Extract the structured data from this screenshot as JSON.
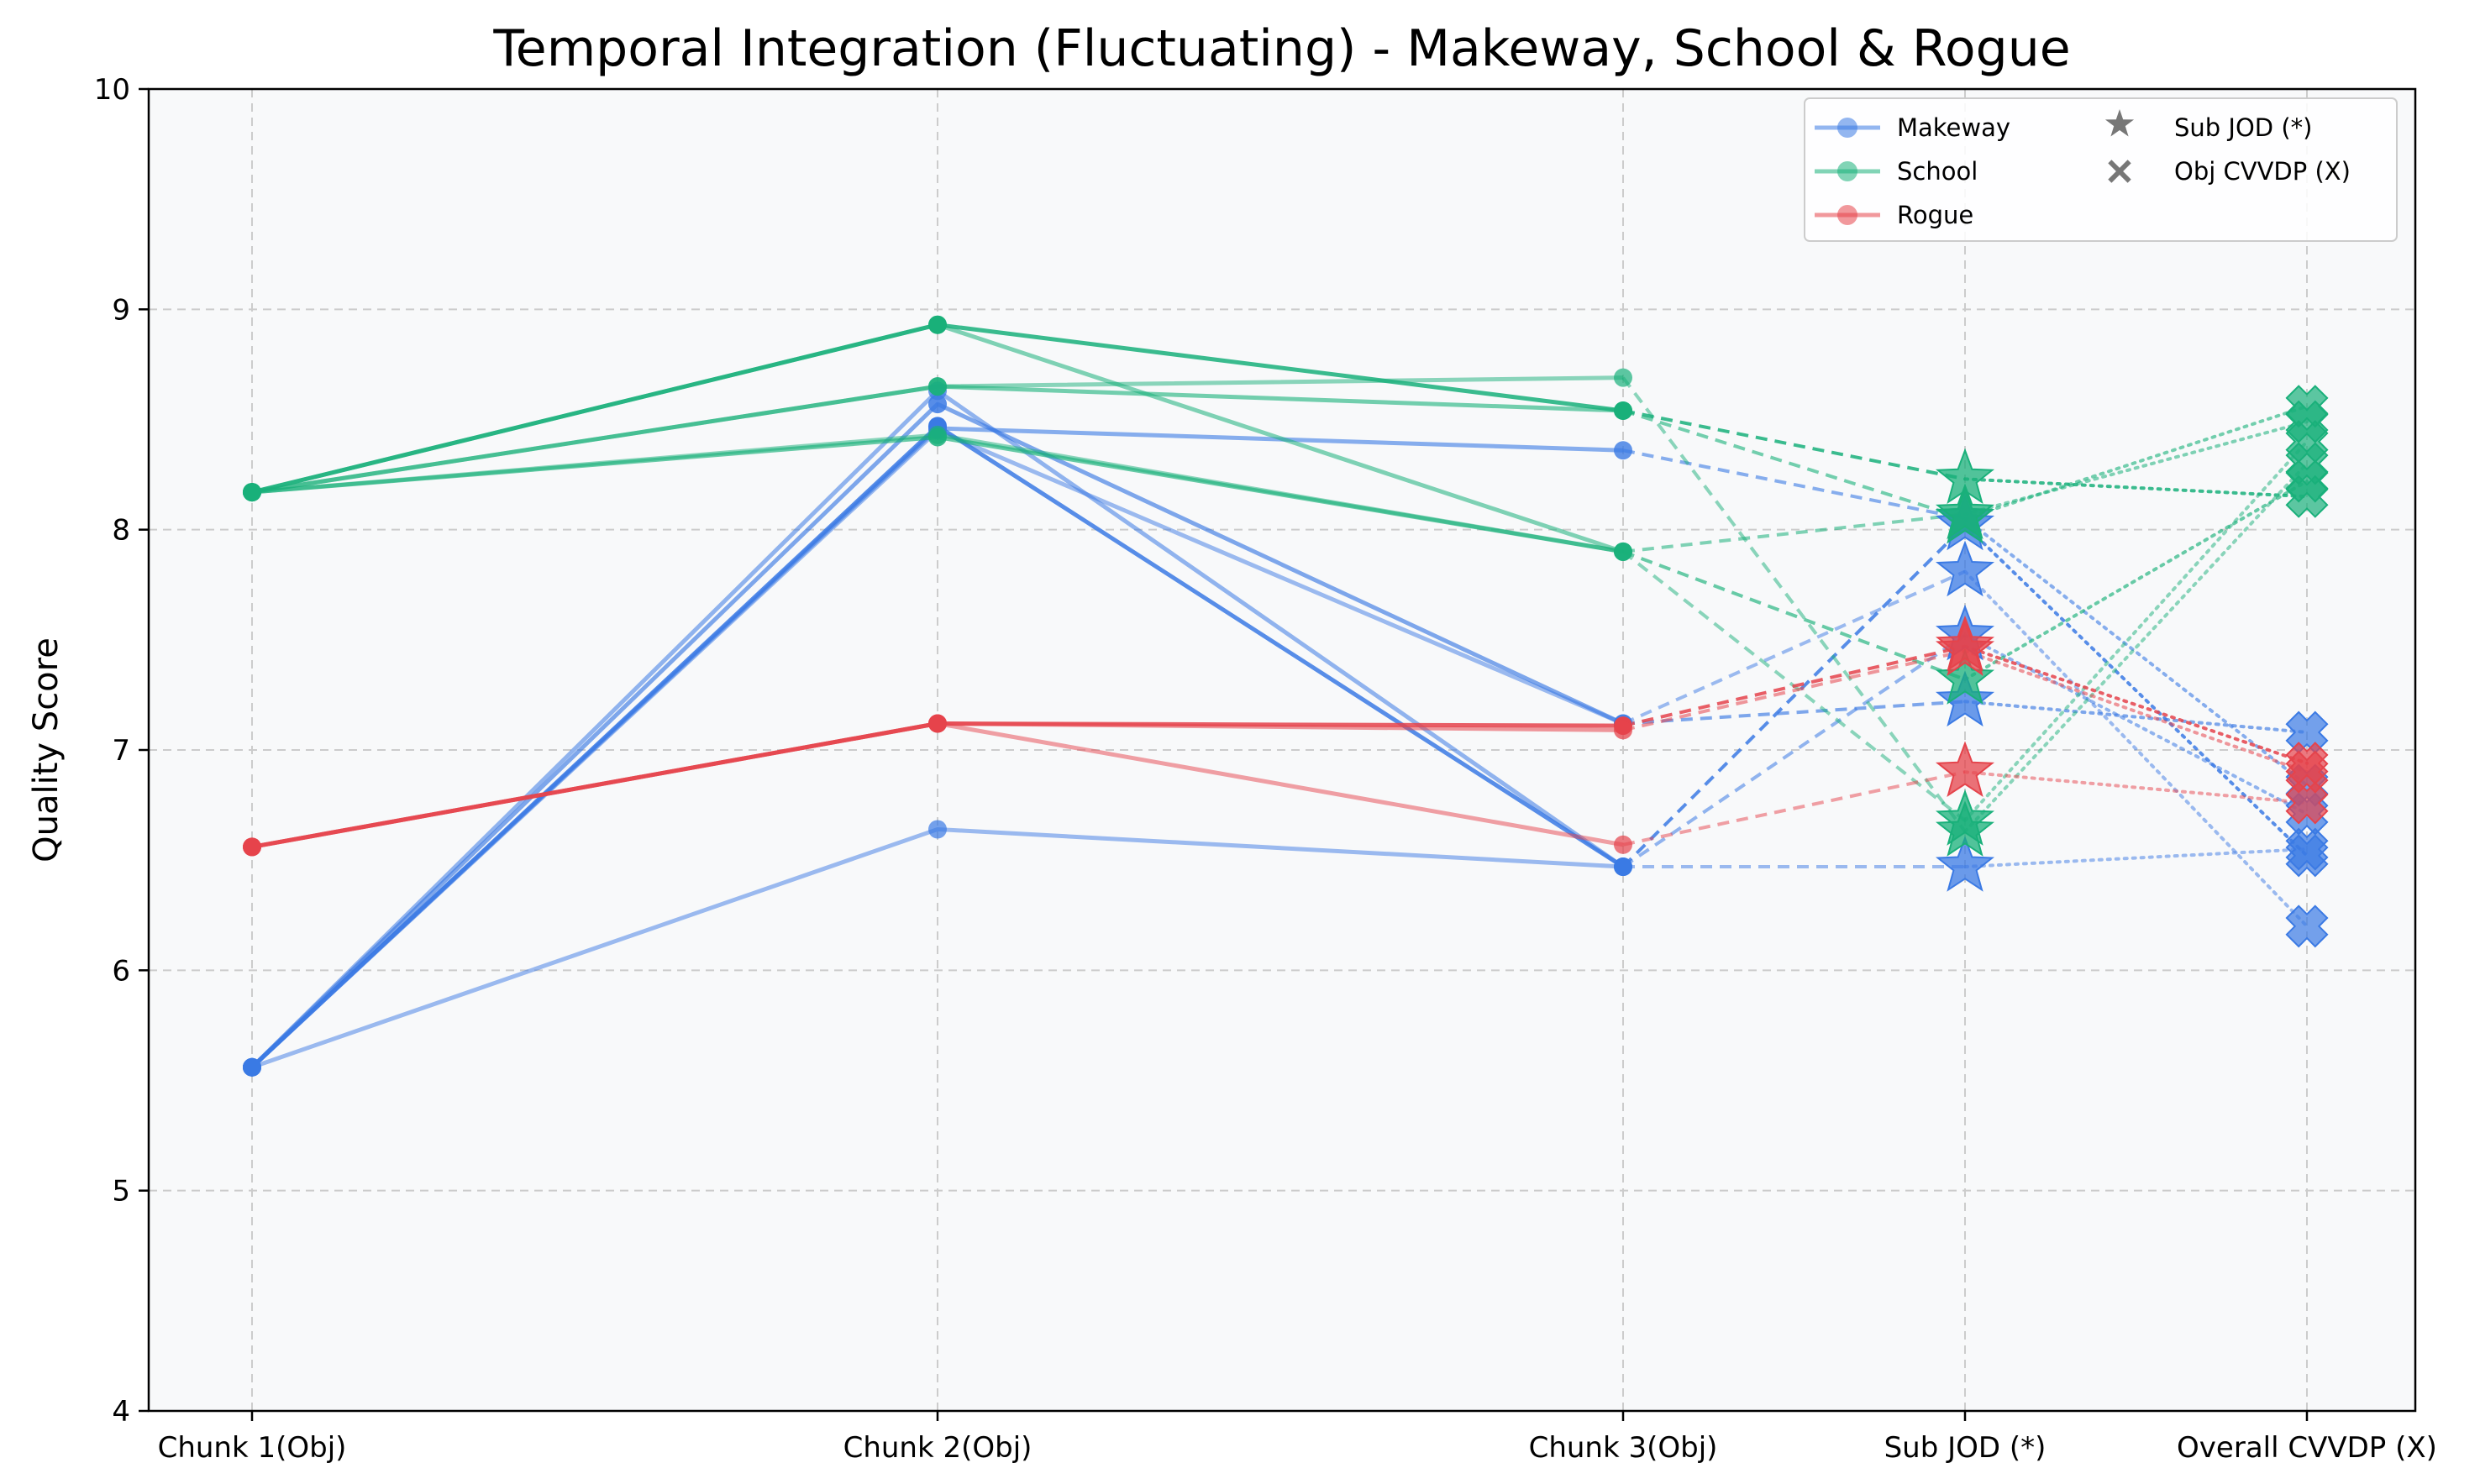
{
  "chart_data": {
    "type": "line",
    "title": "Temporal Integration (Fluctuating) - Makeway, School & Rogue",
    "xlabel": "",
    "ylabel": "Quality Score",
    "ylim": [
      4,
      10
    ],
    "yticks": [
      "4",
      "5",
      "6",
      "7",
      "8",
      "9",
      "10"
    ],
    "categories": [
      "Chunk 1(Obj)",
      "Chunk 2(Obj)",
      "Chunk 3(Obj)",
      "Sub JOD (*)",
      "Overall CVVDP (X)"
    ],
    "grid": true,
    "legend_position": "top-right",
    "legend": {
      "series": [
        "Makeway",
        "School",
        "Rogue"
      ],
      "markers": [
        "Sub JOD (*)",
        "Obj CVVDP (X)"
      ]
    },
    "colors": {
      "Makeway": "#3b7ae4",
      "School": "#19b07a",
      "Rogue": "#e5434b",
      "marker_legend": "#777777",
      "plot_bg": "#f8f9fa",
      "grid": "#cccccc"
    },
    "series": [
      {
        "name": "Makeway",
        "values": [
          5.56,
          8.47,
          6.47,
          8.02,
          6.52
        ]
      },
      {
        "name": "Makeway",
        "values": [
          5.56,
          8.63,
          6.47,
          7.52,
          6.71
        ]
      },
      {
        "name": "Makeway",
        "values": [
          5.56,
          8.45,
          7.12,
          7.81,
          6.2
        ]
      },
      {
        "name": "Makeway",
        "values": [
          5.56,
          8.46,
          8.36,
          8.05,
          6.84
        ]
      },
      {
        "name": "Makeway",
        "values": [
          5.56,
          8.57,
          7.12,
          7.22,
          7.08
        ]
      },
      {
        "name": "Makeway",
        "values": [
          5.56,
          6.64,
          6.47,
          6.47,
          6.55
        ]
      },
      {
        "name": "School",
        "values": [
          8.17,
          8.93,
          8.54,
          8.23,
          8.15
        ]
      },
      {
        "name": "School",
        "values": [
          8.17,
          8.93,
          7.9,
          8.07,
          8.49
        ]
      },
      {
        "name": "School",
        "values": [
          8.17,
          8.65,
          8.69,
          6.63,
          8.3
        ]
      },
      {
        "name": "School",
        "values": [
          8.17,
          8.65,
          8.54,
          8.05,
          8.56
        ]
      },
      {
        "name": "School",
        "values": [
          8.17,
          8.42,
          7.9,
          7.32,
          8.22
        ]
      },
      {
        "name": "School",
        "values": [
          8.17,
          8.43,
          7.9,
          6.68,
          8.4
        ]
      },
      {
        "name": "Rogue",
        "values": [
          6.56,
          7.12,
          7.11,
          7.47,
          6.94
        ]
      },
      {
        "name": "Rogue",
        "values": [
          6.56,
          7.12,
          7.09,
          7.45,
          6.9
        ]
      },
      {
        "name": "Rogue",
        "values": [
          6.56,
          7.12,
          6.57,
          6.9,
          6.76
        ]
      }
    ]
  }
}
